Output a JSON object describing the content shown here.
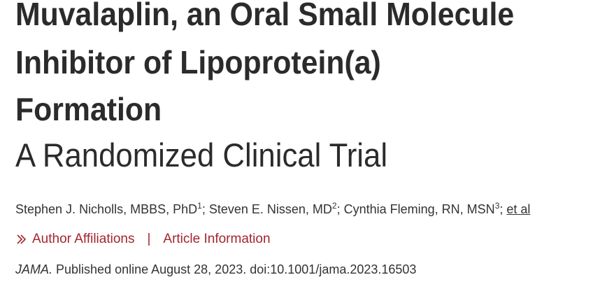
{
  "article": {
    "title_lines": [
      "Muvalaplin, an Oral Small Molecule",
      "Inhibitor of Lipoprotein(a)",
      "Formation"
    ],
    "subtitle": "A Randomized Clinical Trial",
    "authors": [
      {
        "name": "Stephen J. Nicholls, MBBS, PhD",
        "affiliation": "1"
      },
      {
        "name": "Steven E. Nissen, MD",
        "affiliation": "2"
      },
      {
        "name": "Cynthia Fleming, RN, MSN",
        "affiliation": "3"
      }
    ],
    "author_separator": ";",
    "et_al": "et al",
    "links": [
      "Author Affiliations",
      "Article Information"
    ],
    "link_separator": "|",
    "citation": {
      "journal": "JAMA.",
      "text": "Published online August 28, 2023. doi:10.1001/jama.2023.16503"
    }
  }
}
